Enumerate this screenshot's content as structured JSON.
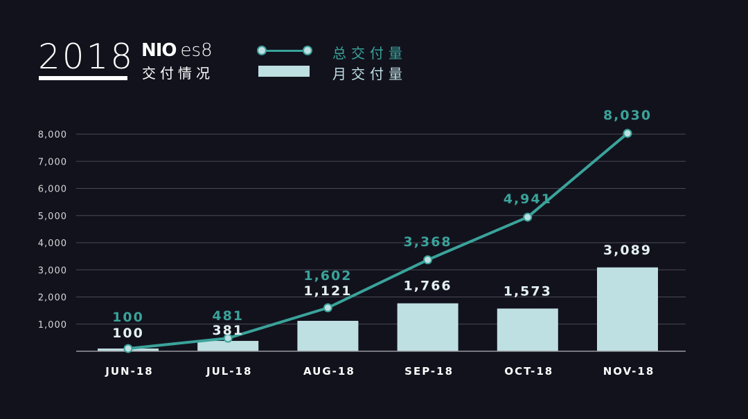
{
  "header": {
    "year": "2018",
    "brand": "NIO",
    "model": "es8",
    "subtitle": "交付情况"
  },
  "legend": {
    "total_label": "总交付量",
    "monthly_label": "月交付量"
  },
  "colors": {
    "background": "#12121d",
    "line": "#3aa39a",
    "bar": "#bfe0e3",
    "grid": "#4a4a55"
  },
  "chart_data": {
    "type": "bar+line",
    "categories": [
      "JUN-18",
      "JUL-18",
      "AUG-18",
      "SEP-18",
      "OCT-18",
      "NOV-18"
    ],
    "series": [
      {
        "name": "月交付量",
        "type": "bar",
        "values": [
          100,
          381,
          1121,
          1766,
          1573,
          3089
        ],
        "labels": [
          "100",
          "381",
          "1,121",
          "1,766",
          "1,573",
          "3,089"
        ]
      },
      {
        "name": "总交付量",
        "type": "line",
        "values": [
          100,
          481,
          1602,
          3368,
          4941,
          8030
        ],
        "labels": [
          "100",
          "481",
          "1,602",
          "3,368",
          "4,941",
          "8,030"
        ]
      }
    ],
    "yticks": [
      1000,
      2000,
      3000,
      4000,
      5000,
      6000,
      7000,
      8000
    ],
    "ytick_labels": [
      "1,000",
      "2,000",
      "3,000",
      "4,000",
      "5,000",
      "6,000",
      "7,000",
      "8,000"
    ],
    "ylim": [
      0,
      8000
    ],
    "grid": true,
    "legend_position": "top"
  }
}
